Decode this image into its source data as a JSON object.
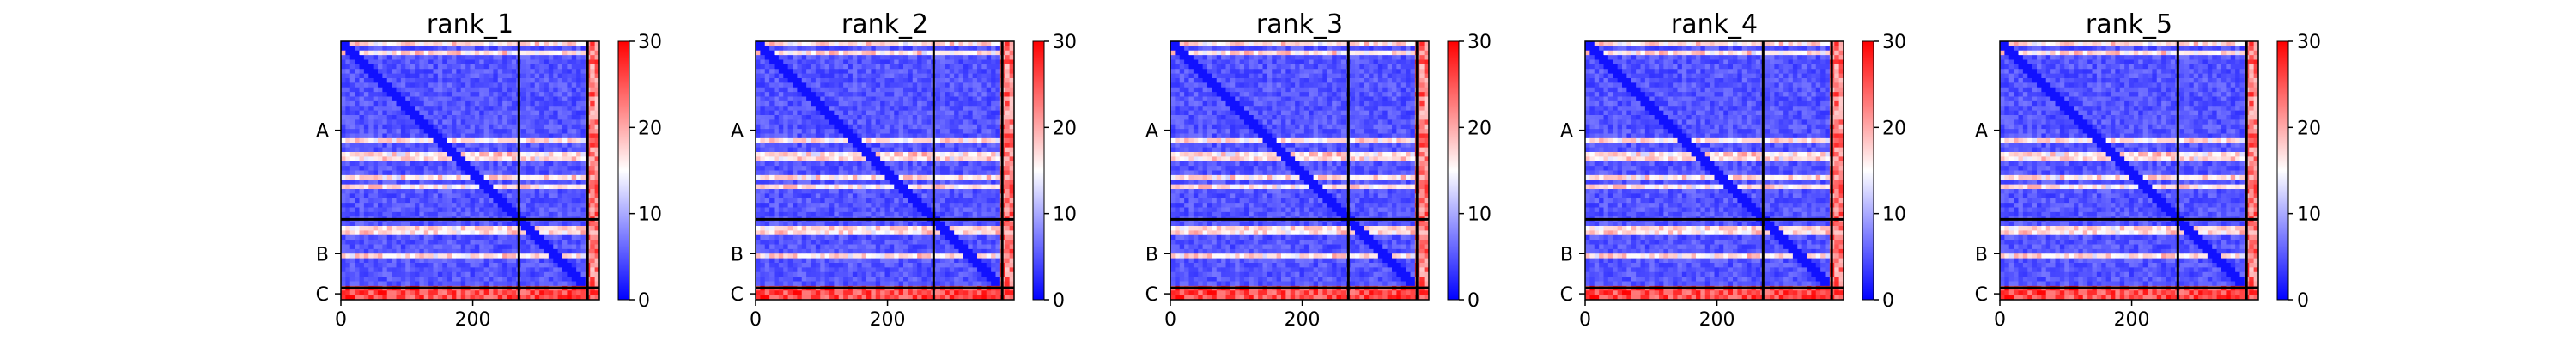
{
  "chart_data": [
    {
      "type": "heatmap",
      "title": "rank_1",
      "xlabel": "",
      "ylabel": "",
      "x_ticks": [
        "0",
        "200"
      ],
      "y_labels": [
        "A",
        "B",
        "C"
      ],
      "chain_boundaries": [
        270,
        374,
        392
      ],
      "xlim": [
        0,
        392
      ],
      "colorbar": {
        "min": 0,
        "max": 30,
        "ticks": [
          "0",
          "10",
          "20",
          "30"
        ],
        "colormap": "bwr"
      }
    },
    {
      "type": "heatmap",
      "title": "rank_2",
      "xlabel": "",
      "ylabel": "",
      "x_ticks": [
        "0",
        "200"
      ],
      "y_labels": [
        "A",
        "B",
        "C"
      ],
      "chain_boundaries": [
        270,
        374,
        392
      ],
      "xlim": [
        0,
        392
      ],
      "colorbar": {
        "min": 0,
        "max": 30,
        "ticks": [
          "0",
          "10",
          "20",
          "30"
        ],
        "colormap": "bwr"
      }
    },
    {
      "type": "heatmap",
      "title": "rank_3",
      "xlabel": "",
      "ylabel": "",
      "x_ticks": [
        "0",
        "200"
      ],
      "y_labels": [
        "A",
        "B",
        "C"
      ],
      "chain_boundaries": [
        270,
        374,
        392
      ],
      "xlim": [
        0,
        392
      ],
      "colorbar": {
        "min": 0,
        "max": 30,
        "ticks": [
          "0",
          "10",
          "20",
          "30"
        ],
        "colormap": "bwr"
      }
    },
    {
      "type": "heatmap",
      "title": "rank_4",
      "xlabel": "",
      "ylabel": "",
      "x_ticks": [
        "0",
        "200"
      ],
      "y_labels": [
        "A",
        "B",
        "C"
      ],
      "chain_boundaries": [
        270,
        374,
        392
      ],
      "xlim": [
        0,
        392
      ],
      "colorbar": {
        "min": 0,
        "max": 30,
        "ticks": [
          "0",
          "10",
          "20",
          "30"
        ],
        "colormap": "bwr"
      }
    },
    {
      "type": "heatmap",
      "title": "rank_5",
      "xlabel": "",
      "ylabel": "",
      "x_ticks": [
        "0",
        "200"
      ],
      "y_labels": [
        "A",
        "B",
        "C"
      ],
      "chain_boundaries": [
        270,
        374,
        392
      ],
      "xlim": [
        0,
        392
      ],
      "colorbar": {
        "min": 0,
        "max": 30,
        "ticks": [
          "0",
          "10",
          "20",
          "30"
        ],
        "colormap": "bwr"
      }
    }
  ],
  "colors": {
    "low": "#0000ff",
    "mid": "#ffffff",
    "high": "#ff0000",
    "divider": "#000000"
  }
}
